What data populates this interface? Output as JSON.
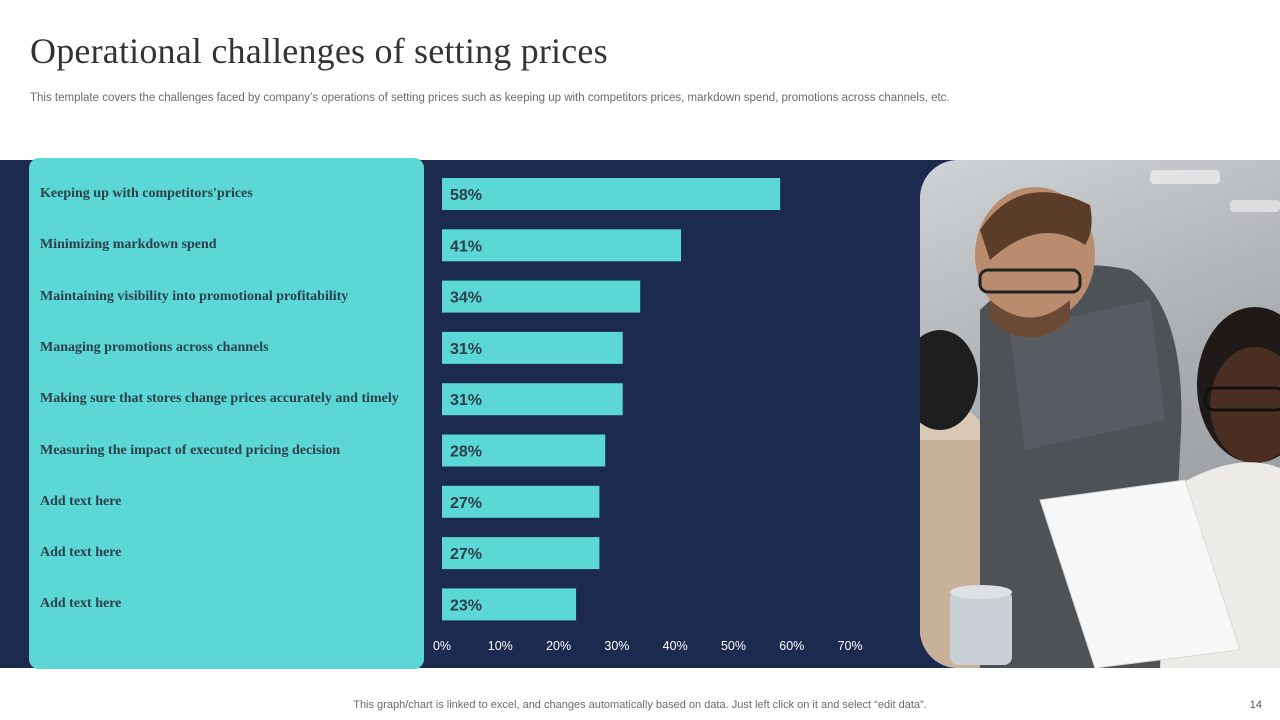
{
  "slide": {
    "title": "Operational challenges of setting prices",
    "subtitle": "This template covers the challenges faced by company’s operations of setting prices such as keeping up with competitors prices, markdown spend, promotions across channels, etc.",
    "footer_note": "This graph/chart is linked to excel,  and changes automatically based on data. Just left click on it and select “edit data”.",
    "page_number": "14"
  },
  "colors": {
    "band": "#1b2a4e",
    "bar": "#5bd7d6",
    "label_panel": "#5bd7d6",
    "data_label": "#2d3f4a",
    "tick_label": "#ffffff"
  },
  "chart_data": {
    "type": "bar",
    "orientation": "horizontal",
    "categories": [
      "Keeping up with competitors'prices",
      "Minimizing markdown spend",
      "Maintaining visibility into promotional profitability",
      "Managing promotions across channels",
      "Making sure that stores change prices accurately and timely",
      "Measuring the impact of executed pricing decision",
      "Add text here",
      "Add text here",
      "Add text here"
    ],
    "values": [
      58,
      41,
      34,
      31,
      31,
      28,
      27,
      27,
      23
    ],
    "data_labels": [
      "58%",
      "41%",
      "34%",
      "31%",
      "31%",
      "28%",
      "27%",
      "27%",
      "23%"
    ],
    "xlim": [
      0,
      70
    ],
    "x_ticks": [
      0,
      10,
      20,
      30,
      40,
      50,
      60,
      70
    ],
    "x_tick_labels": [
      "0%",
      "10%",
      "20%",
      "30%",
      "40%",
      "50%",
      "60%",
      "70%"
    ],
    "grid": false,
    "legend": "none"
  },
  "image": {
    "icon": "office-team-photo"
  }
}
